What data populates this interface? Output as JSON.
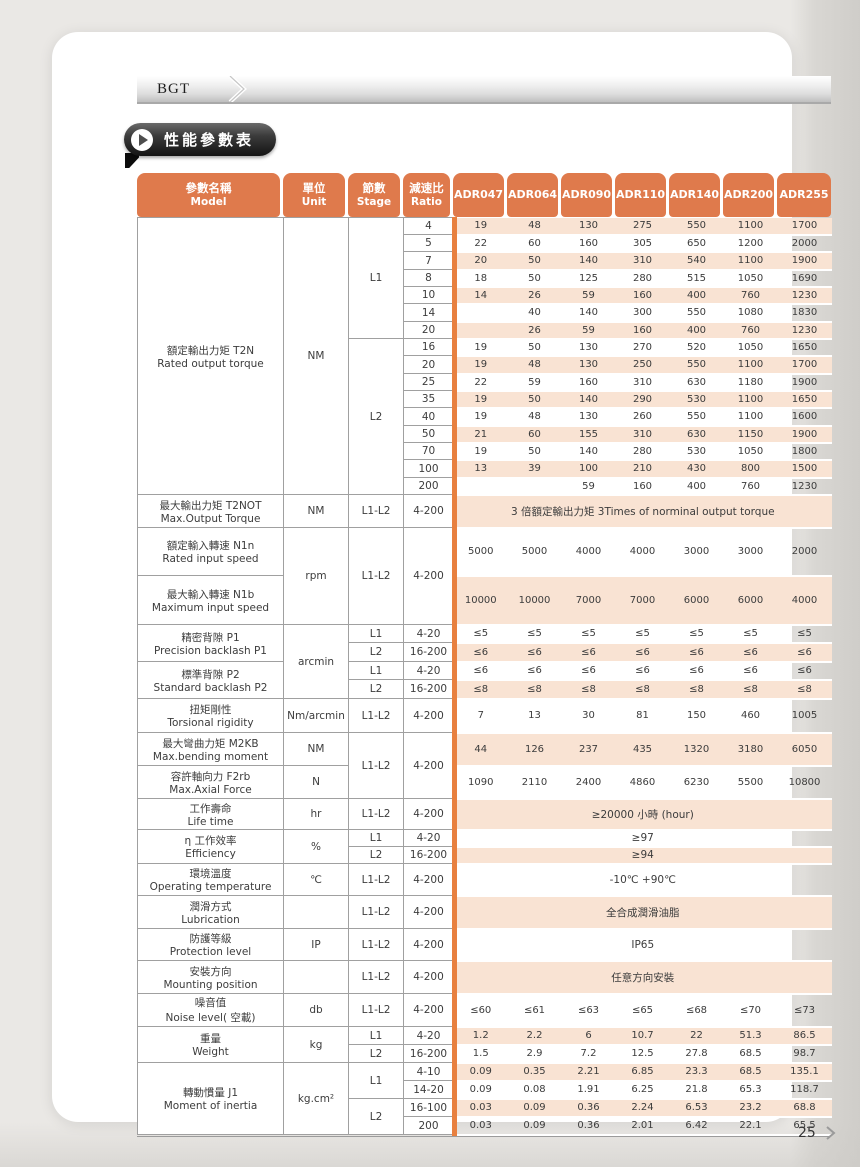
{
  "page": {
    "tab_label": "BGT",
    "section_title": "性能參數表",
    "page_number": "25"
  },
  "colors": {
    "accent_orange": "#DF7A4C",
    "row_band_pink": "#F9E3D3",
    "banner_dark": "#2A2A2A"
  },
  "table": {
    "columns": [
      {
        "zh": "參數名稱",
        "en": "Model"
      },
      {
        "zh": "單位",
        "en": "Unit"
      },
      {
        "zh": "節數",
        "en": "Stage"
      },
      {
        "zh": "減速比",
        "en": "Ratio"
      }
    ],
    "models": [
      "ADR047",
      "ADR064",
      "ADR090",
      "ADR110",
      "ADR140",
      "ADR200",
      "ADR255"
    ],
    "name_cells": [
      {
        "zh": "額定輸出力矩 T2N",
        "en": "Rated output torque",
        "rows": 16
      },
      {
        "zh": "最大輸出力矩 T2NOT",
        "en": "Max.Output Torque",
        "rows": 1
      },
      {
        "zh": "額定輸入轉速 N1n",
        "en": "Rated input speed",
        "rows": 1
      },
      {
        "zh": "最大輸入轉速 N1b",
        "en": "Maximum input speed",
        "rows": 1
      },
      {
        "zh": "精密背隙 P1",
        "en": "Precision backlash  P1",
        "rows": 2
      },
      {
        "zh": "標準背隙 P2",
        "en": "Standard backlash  P2",
        "rows": 2
      },
      {
        "zh": "扭矩剛性",
        "en": "Torsional rigidity",
        "rows": 1
      },
      {
        "zh": "最大彎曲力矩 M2KB",
        "en": "Max.bending moment",
        "rows": 1
      },
      {
        "zh": "容許軸向力 F2rb",
        "en": "Max.Axial Force",
        "rows": 1
      },
      {
        "zh": "工作壽命",
        "en": "Life time",
        "rows": 1
      },
      {
        "zh": "η 工作效率",
        "en": "Efficiency",
        "rows": 2
      },
      {
        "zh": "環境溫度",
        "en": "Operating temperature",
        "rows": 1
      },
      {
        "zh": "潤滑方式",
        "en": "Lubrication",
        "rows": 1
      },
      {
        "zh": "防護等級",
        "en": "Protection level",
        "rows": 1
      },
      {
        "zh": "安裝方向",
        "en": "Mounting position",
        "rows": 1
      },
      {
        "zh": "噪音值",
        "en": "Noise level( 空載)",
        "rows": 1
      },
      {
        "zh": "重量",
        "en": "Weight",
        "rows": 2
      },
      {
        "zh": "轉動慣量 J1",
        "en": "Moment of inertia",
        "rows": 4
      }
    ],
    "unit_cells": [
      {
        "text": "NM",
        "rows": 16
      },
      {
        "text": "NM",
        "rows": 1
      },
      {
        "text": "rpm",
        "rows": 2
      },
      {
        "text": "arcmin",
        "rows": 4
      },
      {
        "text": "Nm/arcmin",
        "rows": 1
      },
      {
        "text": "NM",
        "rows": 1
      },
      {
        "text": "N",
        "rows": 1
      },
      {
        "text": "hr",
        "rows": 1
      },
      {
        "text": "%",
        "rows": 2
      },
      {
        "text": "℃",
        "rows": 1
      },
      {
        "text": "",
        "rows": 1
      },
      {
        "text": "IP",
        "rows": 1
      },
      {
        "text": "",
        "rows": 1
      },
      {
        "text": "db",
        "rows": 1
      },
      {
        "text": "kg",
        "rows": 2
      },
      {
        "text": "kg.cm²",
        "rows": 4
      }
    ],
    "stage_cells": [
      {
        "text": "L1",
        "rows": 7
      },
      {
        "text": "L2",
        "rows": 9
      },
      {
        "text": "L1-L2",
        "rows": 1
      },
      {
        "text": "L1-L2",
        "rows": 2
      },
      {
        "text": "L1",
        "rows": 1
      },
      {
        "text": "L2",
        "rows": 1
      },
      {
        "text": "L1",
        "rows": 1
      },
      {
        "text": "L2",
        "rows": 1
      },
      {
        "text": "L1-L2",
        "rows": 1
      },
      {
        "text": "L1-L2",
        "rows": 2
      },
      {
        "text": "L1-L2",
        "rows": 1
      },
      {
        "text": "L1",
        "rows": 1
      },
      {
        "text": "L2",
        "rows": 1
      },
      {
        "text": "L1-L2",
        "rows": 1
      },
      {
        "text": "L1-L2",
        "rows": 1
      },
      {
        "text": "L1-L2",
        "rows": 1
      },
      {
        "text": "L1-L2",
        "rows": 1
      },
      {
        "text": "L1-L2",
        "rows": 1
      },
      {
        "text": "L1",
        "rows": 1
      },
      {
        "text": "L2",
        "rows": 1
      },
      {
        "text": "L1",
        "rows": 2
      },
      {
        "text": "L2",
        "rows": 2
      }
    ],
    "ratio_cells": [
      {
        "text": "4",
        "rows": 1
      },
      {
        "text": "5",
        "rows": 1
      },
      {
        "text": "7",
        "rows": 1
      },
      {
        "text": "8",
        "rows": 1
      },
      {
        "text": "10",
        "rows": 1
      },
      {
        "text": "14",
        "rows": 1
      },
      {
        "text": "20",
        "rows": 1
      },
      {
        "text": "16",
        "rows": 1
      },
      {
        "text": "20",
        "rows": 1
      },
      {
        "text": "25",
        "rows": 1
      },
      {
        "text": "35",
        "rows": 1
      },
      {
        "text": "40",
        "rows": 1
      },
      {
        "text": "50",
        "rows": 1
      },
      {
        "text": "70",
        "rows": 1
      },
      {
        "text": "100",
        "rows": 1
      },
      {
        "text": "200",
        "rows": 1
      },
      {
        "text": "4-200",
        "rows": 1
      },
      {
        "text": "4-200",
        "rows": 2
      },
      {
        "text": "4-20",
        "rows": 1
      },
      {
        "text": "16-200",
        "rows": 1
      },
      {
        "text": "4-20",
        "rows": 1
      },
      {
        "text": "16-200",
        "rows": 1
      },
      {
        "text": "4-200",
        "rows": 1
      },
      {
        "text": "4-200",
        "rows": 2
      },
      {
        "text": "4-200",
        "rows": 1
      },
      {
        "text": "4-20",
        "rows": 1
      },
      {
        "text": "16-200",
        "rows": 1
      },
      {
        "text": "4-200",
        "rows": 1
      },
      {
        "text": "4-200",
        "rows": 1
      },
      {
        "text": "4-200",
        "rows": 1
      },
      {
        "text": "4-200",
        "rows": 1
      },
      {
        "text": "4-200",
        "rows": 1
      },
      {
        "text": "4-20",
        "rows": 1
      },
      {
        "text": "16-200",
        "rows": 1
      },
      {
        "text": "4-10",
        "rows": 1
      },
      {
        "text": "14-20",
        "rows": 1
      },
      {
        "text": "16-100",
        "rows": 1
      },
      {
        "text": "200",
        "rows": 1
      }
    ],
    "rows": [
      {
        "values": [
          "19",
          "48",
          "130",
          "275",
          "550",
          "1100",
          "1700"
        ]
      },
      {
        "values": [
          "22",
          "60",
          "160",
          "305",
          "650",
          "1200",
          "2000"
        ]
      },
      {
        "values": [
          "20",
          "50",
          "140",
          "310",
          "540",
          "1100",
          "1900"
        ]
      },
      {
        "values": [
          "18",
          "50",
          "125",
          "280",
          "515",
          "1050",
          "1690"
        ]
      },
      {
        "values": [
          "14",
          "26",
          "59",
          "160",
          "400",
          "760",
          "1230"
        ]
      },
      {
        "values": [
          "",
          "40",
          "140",
          "300",
          "550",
          "1080",
          "1830"
        ]
      },
      {
        "values": [
          "",
          "26",
          "59",
          "160",
          "400",
          "760",
          "1230"
        ]
      },
      {
        "values": [
          "19",
          "50",
          "130",
          "270",
          "520",
          "1050",
          "1650"
        ]
      },
      {
        "values": [
          "19",
          "48",
          "130",
          "250",
          "550",
          "1100",
          "1700"
        ]
      },
      {
        "values": [
          "22",
          "59",
          "160",
          "310",
          "630",
          "1180",
          "1900"
        ]
      },
      {
        "values": [
          "19",
          "50",
          "140",
          "290",
          "530",
          "1100",
          "1650"
        ]
      },
      {
        "values": [
          "19",
          "48",
          "130",
          "260",
          "550",
          "1100",
          "1600"
        ]
      },
      {
        "values": [
          "21",
          "60",
          "155",
          "310",
          "630",
          "1150",
          "1900"
        ]
      },
      {
        "values": [
          "19",
          "50",
          "140",
          "280",
          "530",
          "1050",
          "1800"
        ]
      },
      {
        "values": [
          "13",
          "39",
          "100",
          "210",
          "430",
          "800",
          "1500"
        ]
      },
      {
        "values": [
          "",
          "",
          "59",
          "160",
          "400",
          "760",
          "1230"
        ]
      },
      {
        "span": "3 倍額定輸出力矩 3Times of norminal output torque"
      },
      {
        "values": [
          "5000",
          "5000",
          "4000",
          "4000",
          "3000",
          "3000",
          "2000"
        ]
      },
      {
        "values": [
          "10000",
          "10000",
          "7000",
          "7000",
          "6000",
          "6000",
          "4000"
        ]
      },
      {
        "values": [
          "≤5",
          "≤5",
          "≤5",
          "≤5",
          "≤5",
          "≤5",
          "≤5"
        ]
      },
      {
        "values": [
          "≤6",
          "≤6",
          "≤6",
          "≤6",
          "≤6",
          "≤6",
          "≤6"
        ]
      },
      {
        "values": [
          "≤6",
          "≤6",
          "≤6",
          "≤6",
          "≤6",
          "≤6",
          "≤6"
        ]
      },
      {
        "values": [
          "≤8",
          "≤8",
          "≤8",
          "≤8",
          "≤8",
          "≤8",
          "≤8"
        ]
      },
      {
        "values": [
          "7",
          "13",
          "30",
          "81",
          "150",
          "460",
          "1005"
        ]
      },
      {
        "values": [
          "44",
          "126",
          "237",
          "435",
          "1320",
          "3180",
          "6050"
        ]
      },
      {
        "values": [
          "1090",
          "2110",
          "2400",
          "4860",
          "6230",
          "5500",
          "10800"
        ]
      },
      {
        "span": "≥20000 小時 (hour)"
      },
      {
        "span": "≥97"
      },
      {
        "span": "≥94"
      },
      {
        "span": "-10℃ +90℃"
      },
      {
        "span": "全合成潤滑油脂"
      },
      {
        "span": "IP65"
      },
      {
        "span": "任意方向安裝"
      },
      {
        "values": [
          "≤60",
          "≤61",
          "≤63",
          "≤65",
          "≤68",
          "≤70",
          "≤73"
        ]
      },
      {
        "values": [
          "1.2",
          "2.2",
          "6",
          "10.7",
          "22",
          "51.3",
          "86.5"
        ]
      },
      {
        "values": [
          "1.5",
          "2.9",
          "7.2",
          "12.5",
          "27.8",
          "68.5",
          "98.7"
        ]
      },
      {
        "values": [
          "0.09",
          "0.35",
          "2.21",
          "6.85",
          "23.3",
          "68.5",
          "135.1"
        ]
      },
      {
        "values": [
          "0.09",
          "0.08",
          "1.91",
          "6.25",
          "21.8",
          "65.3",
          "118.7"
        ]
      },
      {
        "values": [
          "0.03",
          "0.09",
          "0.36",
          "2.24",
          "6.53",
          "23.2",
          "68.8"
        ]
      },
      {
        "values": [
          "0.03",
          "0.09",
          "0.36",
          "2.01",
          "6.42",
          "22.1",
          "65.5"
        ]
      }
    ]
  }
}
